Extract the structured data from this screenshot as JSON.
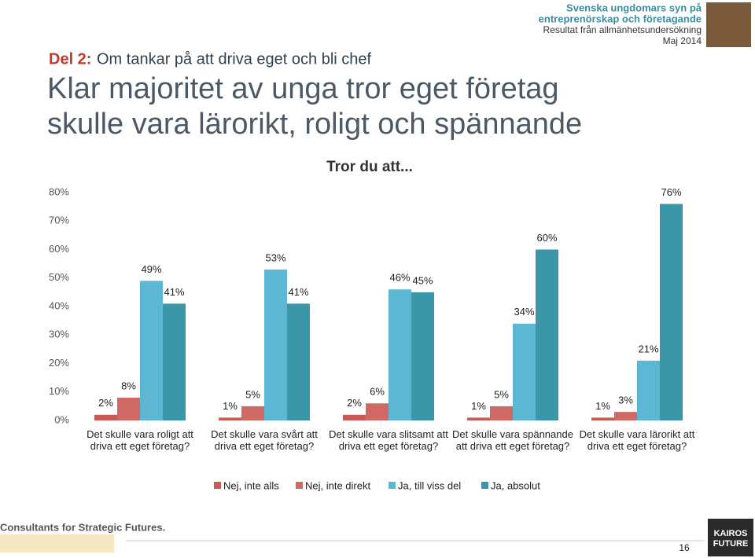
{
  "header": {
    "brand_lines": [
      "Svenska ungdomars syn på",
      "entreprenörskap och företagande",
      "Resultat från allmänhetsundersökning",
      "Maj 2014"
    ],
    "section_label": "Del 2:",
    "section_title": "Om tankar på att driva eget och bli chef",
    "title_lines": [
      "Klar majoritet av unga tror eget företag",
      "skulle vara lärorikt, roligt och spännande"
    ]
  },
  "chart_data": {
    "type": "bar",
    "title": "Tror du att...",
    "categories": [
      "Det skulle vara roligt att driva ett eget företag?",
      "Det skulle vara svårt att driva ett eget företag?",
      "Det skulle vara slitsamt att driva ett eget företag?",
      "Det skulle vara spännande att driva ett eget företag?",
      "Det skulle vara lärorikt att driva ett eget företag?"
    ],
    "series": [
      {
        "name": "Nej, inte alls",
        "color": "#c75b57",
        "values": [
          2,
          1,
          2,
          1,
          1
        ],
        "value_labels": [
          "2%",
          "1%",
          "2%",
          "1%",
          "1%"
        ]
      },
      {
        "name": "Nej, inte direkt",
        "color": "#cf6964",
        "values": [
          8,
          5,
          6,
          5,
          3
        ],
        "value_labels": [
          "8%",
          "5%",
          "6%",
          "5%",
          "3%"
        ]
      },
      {
        "name": "Ja, till viss del",
        "color": "#5db7d2",
        "values": [
          49,
          53,
          46,
          34,
          21
        ],
        "value_labels": [
          "49%",
          "53%",
          "46%",
          "34%",
          "21%"
        ]
      },
      {
        "name": "Ja, absolut",
        "color": "#3b96a8",
        "values": [
          41,
          41,
          45,
          60,
          76
        ],
        "value_labels": [
          "41%",
          "41%",
          "45%",
          "60%",
          "76%"
        ]
      }
    ],
    "ylim": [
      0,
      80
    ],
    "yticks": [
      {
        "value": 0,
        "label": "0%"
      },
      {
        "value": 10,
        "label": "10%"
      },
      {
        "value": 20,
        "label": "20%"
      },
      {
        "value": 30,
        "label": "30%"
      },
      {
        "value": 40,
        "label": "40%"
      },
      {
        "value": 50,
        "label": "50%"
      },
      {
        "value": 60,
        "label": "60%"
      },
      {
        "value": 70,
        "label": "70%"
      },
      {
        "value": 80,
        "label": "80%"
      }
    ],
    "grid": false,
    "legend": "bottom"
  },
  "footer": {
    "tagline": "Consultants for Strategic Futures.",
    "logo_lines": [
      "KAIROS",
      "FUTURE"
    ],
    "page_number": "16"
  }
}
